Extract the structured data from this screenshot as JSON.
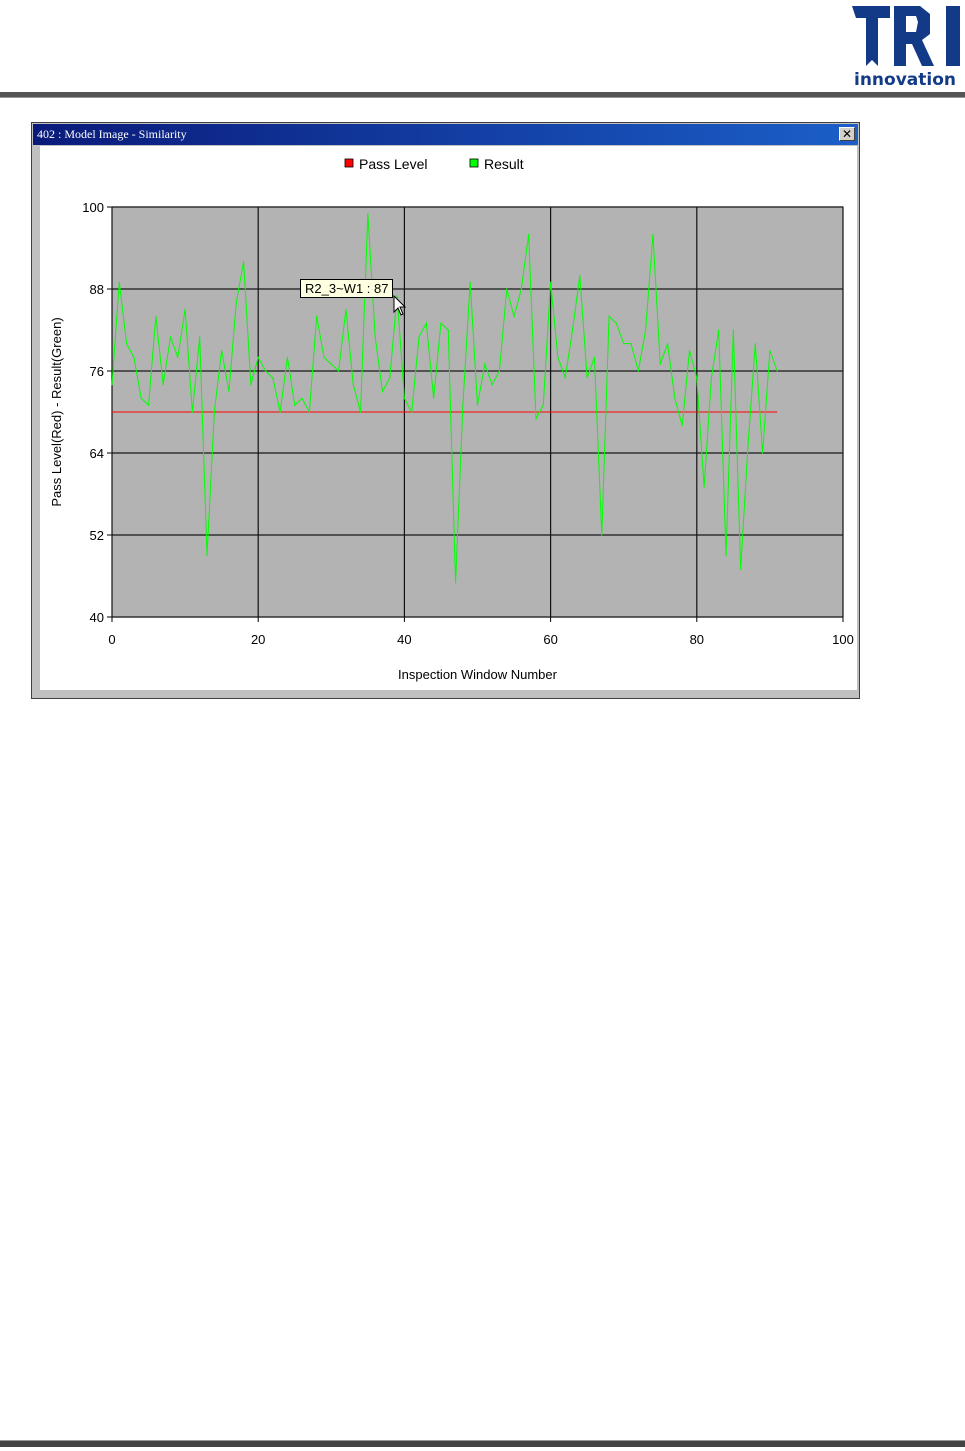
{
  "header": {
    "logo_text": "TRI",
    "logo_subtext": "innovation"
  },
  "window": {
    "title": "402 : Model Image - Similarity",
    "close_label": "✕"
  },
  "tooltip": "R2_3~W1 : 87",
  "colors": {
    "pass_level": "#ff0000",
    "result": "#00ff00",
    "plot_bg": "#b3b3b3",
    "titlebar": "#0a1a7a",
    "logo": "#123a86"
  },
  "chart_data": {
    "type": "line",
    "xlabel": "Inspection Window Number",
    "ylabel": "Pass Level(Red) - Result(Green)",
    "xlim": [
      0,
      100
    ],
    "ylim": [
      40,
      100
    ],
    "xticks": [
      "0",
      "20",
      "40",
      "60",
      "80",
      "100"
    ],
    "yticks": [
      "40",
      "52",
      "64",
      "76",
      "88",
      "100"
    ],
    "grid": true,
    "legend": "top-center",
    "series": [
      {
        "name": "Pass Level",
        "color": "#ff0000",
        "x": [
          0,
          91
        ],
        "values": [
          70,
          70
        ]
      },
      {
        "name": "Result",
        "color": "#00ff00",
        "values": [
          74,
          89,
          80,
          78,
          72,
          71,
          84,
          74,
          81,
          78,
          85,
          70,
          81,
          49,
          70,
          79,
          73,
          86,
          92,
          74,
          78,
          76,
          75,
          70,
          78,
          71,
          72,
          70,
          84,
          78,
          77,
          76,
          85,
          74,
          70,
          99,
          81,
          73,
          75,
          87,
          72,
          70,
          81,
          83,
          72,
          83,
          82,
          45,
          71,
          89,
          71,
          77,
          74,
          76,
          88,
          84,
          88,
          96,
          69,
          71,
          89,
          78,
          75,
          82,
          90,
          75,
          78,
          52,
          84,
          83,
          80,
          80,
          76,
          82,
          96,
          77,
          80,
          72,
          68,
          79,
          75,
          59,
          75,
          82,
          49,
          82,
          47,
          65,
          80,
          64,
          79,
          76
        ]
      }
    ]
  }
}
